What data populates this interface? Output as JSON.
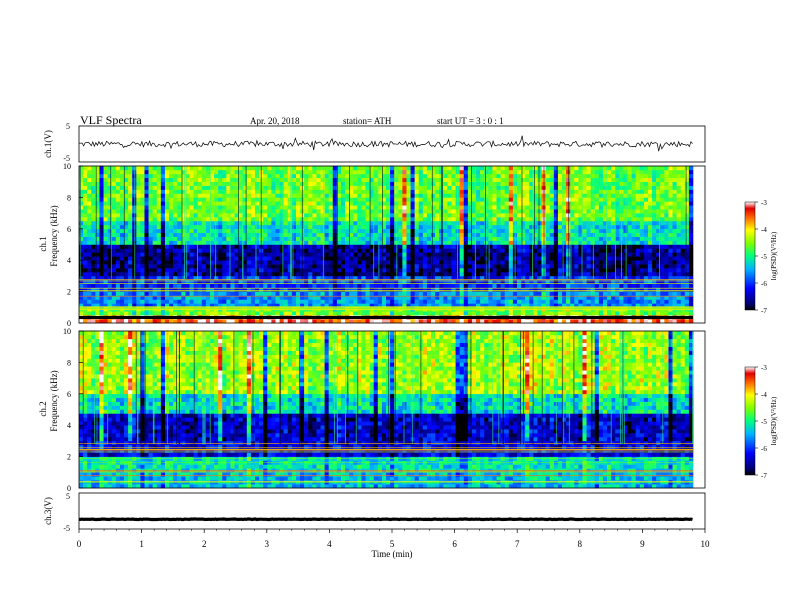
{
  "header": {
    "title": "VLF  Spectra",
    "date": "Apr. 20, 2018",
    "station": "station= ATH",
    "start_ut": "start  UT  =    3  : 0   : 1"
  },
  "chart_data": [
    {
      "type": "line",
      "panel": "ch1-waveform",
      "ylabel": "ch.1(V)",
      "ylim": [
        -5,
        5
      ],
      "yticks": [
        "5",
        "-5"
      ],
      "xlim": [
        0,
        10
      ],
      "trace_color": "#000000",
      "trace_level": 0,
      "note_values": "noisy waveform centred near 0 V, amplitude about ±1 V with spikes to ±2 V"
    },
    {
      "type": "heatmap",
      "panel": "ch1-spectrogram",
      "ylabel_top": "ch.1",
      "ylabel": "Frequency  (kHz)",
      "ylim": [
        0,
        10
      ],
      "yticks": [
        "0",
        "2",
        "4",
        "6",
        "8",
        "10"
      ],
      "xlim": [
        0,
        9.8
      ],
      "colorbar": {
        "label": "log(PSD)(V²/Hz)",
        "range": [
          -7,
          -3
        ],
        "ticks": [
          "-3",
          "-4",
          "-5",
          "-6",
          "-7"
        ]
      },
      "bands_khz": [
        {
          "from": 0,
          "to": 0.5,
          "level": -3.3
        },
        {
          "from": 0.5,
          "to": 1.0,
          "level": -4.6
        },
        {
          "from": 1.0,
          "to": 2.0,
          "level": -5.6
        },
        {
          "from": 2.0,
          "to": 3.0,
          "level": -6.0
        },
        {
          "from": 3.0,
          "to": 5.0,
          "level": -6.6
        },
        {
          "from": 5.0,
          "to": 6.5,
          "level": -5.2
        },
        {
          "from": 6.5,
          "to": 10.0,
          "level": -4.6
        }
      ]
    },
    {
      "type": "heatmap",
      "panel": "ch2-spectrogram",
      "ylabel_top": "ch.2",
      "ylabel": "Frequency  (kHz)",
      "ylim": [
        0,
        10
      ],
      "yticks": [
        "0",
        "2",
        "4",
        "6",
        "8",
        "10"
      ],
      "xlim": [
        0,
        9.8
      ],
      "colorbar": {
        "label": "log(PSD)(V²/Hz)",
        "range": [
          -7,
          -3
        ],
        "ticks": [
          "-3",
          "-4",
          "-5",
          "-6",
          "-7"
        ]
      },
      "bands_khz": [
        {
          "from": 0,
          "to": 1.0,
          "level": -5.4
        },
        {
          "from": 1.0,
          "to": 2.0,
          "level": -5.2
        },
        {
          "from": 2.0,
          "to": 3.0,
          "level": -6.3
        },
        {
          "from": 3.0,
          "to": 4.8,
          "level": -6.4
        },
        {
          "from": 4.8,
          "to": 6.0,
          "level": -5.2
        },
        {
          "from": 6.0,
          "to": 10.0,
          "level": -4.4
        }
      ]
    },
    {
      "type": "line",
      "panel": "ch3-waveform",
      "ylabel": "ch.3(V)",
      "ylim": [
        -5,
        5
      ],
      "yticks": [
        "5",
        "-5"
      ],
      "xlim": [
        0,
        10
      ],
      "xlabel": "Time  (min)",
      "xticks": [
        "0",
        "1",
        "2",
        "3",
        "4",
        "5",
        "6",
        "7",
        "8",
        "9",
        "10"
      ],
      "trace_color": "#000000",
      "trace_level": -2.3
    }
  ]
}
